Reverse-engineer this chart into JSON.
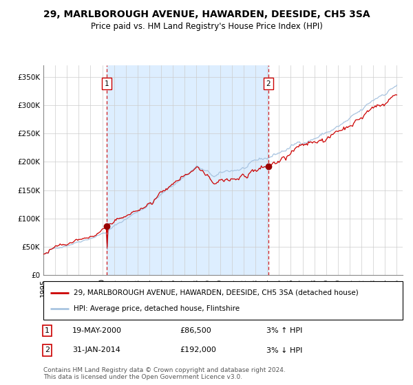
{
  "title": "29, MARLBOROUGH AVENUE, HAWARDEN, DEESIDE, CH5 3SA",
  "subtitle": "Price paid vs. HM Land Registry's House Price Index (HPI)",
  "ylabel_ticks": [
    "£0",
    "£50K",
    "£100K",
    "£150K",
    "£200K",
    "£250K",
    "£300K",
    "£350K"
  ],
  "ytick_values": [
    0,
    50000,
    100000,
    150000,
    200000,
    250000,
    300000,
    350000
  ],
  "ylim": [
    0,
    370000
  ],
  "xlim_start": 1995.0,
  "xlim_end": 2025.5,
  "sale1_date": 2000.38,
  "sale1_price": 86500,
  "sale1_label": "1",
  "sale1_date_str": "19-MAY-2000",
  "sale1_price_str": "£86,500",
  "sale1_hpi_str": "3% ↑ HPI",
  "sale2_date": 2014.08,
  "sale2_price": 192000,
  "sale2_label": "2",
  "sale2_date_str": "31-JAN-2014",
  "sale2_price_str": "£192,000",
  "sale2_hpi_str": "3% ↓ HPI",
  "hpi_color": "#a8c4e0",
  "price_color": "#cc0000",
  "bg_shaded_color": "#ddeeff",
  "grid_color": "#cccccc",
  "marker_color": "#990000",
  "legend_line1": "29, MARLBOROUGH AVENUE, HAWARDEN, DEESIDE, CH5 3SA (detached house)",
  "legend_line2": "HPI: Average price, detached house, Flintshire",
  "footer": "Contains HM Land Registry data © Crown copyright and database right 2024.\nThis data is licensed under the Open Government Licence v3.0.",
  "title_fontsize": 10,
  "subtitle_fontsize": 8.5,
  "tick_fontsize": 7.5,
  "legend_fontsize": 7.5,
  "footer_fontsize": 6.5
}
